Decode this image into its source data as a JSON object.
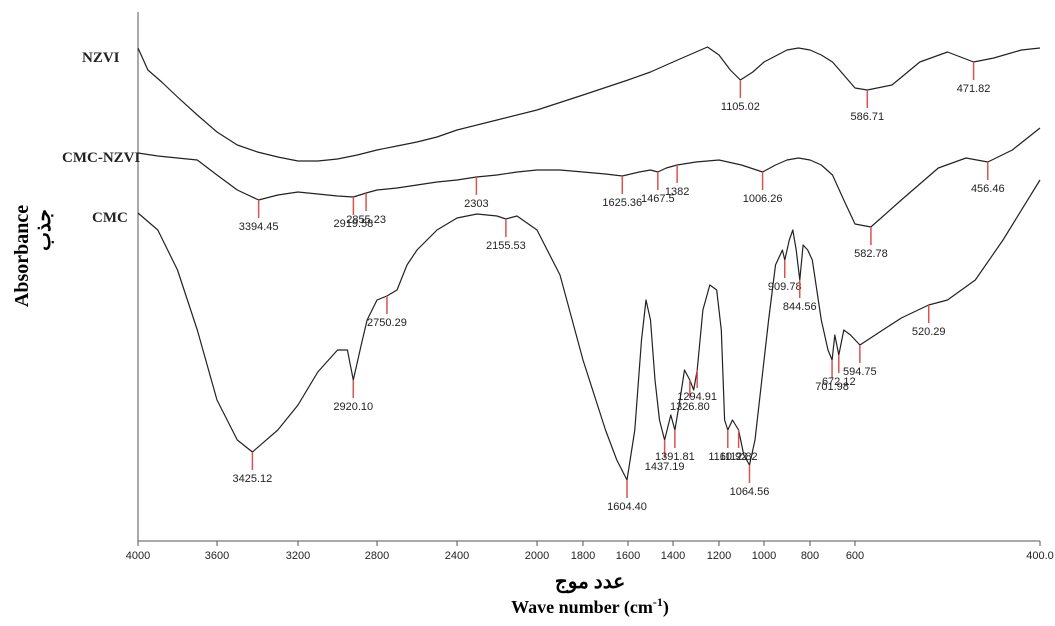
{
  "chart_data": {
    "type": "line",
    "title": "",
    "xlabel_arabic": "عدد موج",
    "xlabel": "Wave number (cm",
    "xlabel_unit_sup": "-1",
    "xlabel_close": ")",
    "ylabel": "Absorbance",
    "ylabel_arabic": "جذب",
    "xlim": [
      4000,
      400
    ],
    "x_reversed": true,
    "x_ticks": [
      {
        "value": 4000,
        "label": "4000"
      },
      {
        "value": 3600,
        "label": "3600"
      },
      {
        "value": 3200,
        "label": "3200"
      },
      {
        "value": 2800,
        "label": "2800"
      },
      {
        "value": 2400,
        "label": "2400"
      },
      {
        "value": 2000,
        "label": "2000"
      },
      {
        "value": 1800,
        "label": "1800"
      },
      {
        "value": 1600,
        "label": "1600"
      },
      {
        "value": 1400,
        "label": "1400"
      },
      {
        "value": 1200,
        "label": "1200"
      },
      {
        "value": 1000,
        "label": "1000"
      },
      {
        "value": 800,
        "label": "800"
      },
      {
        "value": 600,
        "label": "600"
      },
      {
        "value": 400,
        "label": "400.0"
      }
    ],
    "line_color": "#222222",
    "marker_color": "#d9534f",
    "series": [
      {
        "name": "NZVI",
        "points": [
          [
            4000,
            48
          ],
          [
            3950,
            70
          ],
          [
            3880,
            82
          ],
          [
            3800,
            97
          ],
          [
            3700,
            115
          ],
          [
            3600,
            132
          ],
          [
            3500,
            145
          ],
          [
            3400,
            152
          ],
          [
            3300,
            157
          ],
          [
            3200,
            161
          ],
          [
            3100,
            161
          ],
          [
            3000,
            159
          ],
          [
            2900,
            155
          ],
          [
            2800,
            150
          ],
          [
            2700,
            146
          ],
          [
            2600,
            142
          ],
          [
            2500,
            137
          ],
          [
            2400,
            130
          ],
          [
            2200,
            120
          ],
          [
            2000,
            110
          ],
          [
            1800,
            95
          ],
          [
            1600,
            80
          ],
          [
            1500,
            72
          ],
          [
            1400,
            62
          ],
          [
            1300,
            52
          ],
          [
            1250,
            47
          ],
          [
            1200,
            55
          ],
          [
            1150,
            70
          ],
          [
            1105,
            80
          ],
          [
            1050,
            72
          ],
          [
            1000,
            62
          ],
          [
            950,
            56
          ],
          [
            900,
            50
          ],
          [
            850,
            48
          ],
          [
            800,
            50
          ],
          [
            750,
            55
          ],
          [
            700,
            62
          ],
          [
            650,
            75
          ],
          [
            600,
            88
          ],
          [
            586.71,
            90
          ],
          [
            560,
            85
          ],
          [
            530,
            62
          ],
          [
            500,
            52
          ],
          [
            471.82,
            62
          ],
          [
            450,
            58
          ],
          [
            420,
            50
          ],
          [
            400,
            48
          ]
        ],
        "peaks": [
          {
            "x": 1105.02,
            "label": "1105.02"
          },
          {
            "x": 586.71,
            "label": "586.71"
          },
          {
            "x": 471.82,
            "label": "471.82"
          }
        ]
      },
      {
        "name": "CMC-NZVI",
        "points": [
          [
            4000,
            153
          ],
          [
            3900,
            156
          ],
          [
            3800,
            158
          ],
          [
            3700,
            160
          ],
          [
            3600,
            175
          ],
          [
            3500,
            190
          ],
          [
            3394.45,
            200
          ],
          [
            3300,
            195
          ],
          [
            3200,
            192
          ],
          [
            3100,
            194
          ],
          [
            3000,
            196
          ],
          [
            2919.58,
            197
          ],
          [
            2855.23,
            193
          ],
          [
            2800,
            190
          ],
          [
            2700,
            188
          ],
          [
            2600,
            185
          ],
          [
            2500,
            182
          ],
          [
            2400,
            180
          ],
          [
            2303,
            177
          ],
          [
            2200,
            175
          ],
          [
            2100,
            172
          ],
          [
            2000,
            170
          ],
          [
            1900,
            170
          ],
          [
            1800,
            172
          ],
          [
            1700,
            174
          ],
          [
            1625.36,
            176
          ],
          [
            1550,
            172
          ],
          [
            1500,
            170
          ],
          [
            1467.5,
            172
          ],
          [
            1430,
            168
          ],
          [
            1382,
            165
          ],
          [
            1300,
            162
          ],
          [
            1200,
            160
          ],
          [
            1100,
            165
          ],
          [
            1006.26,
            172
          ],
          [
            950,
            165
          ],
          [
            900,
            160
          ],
          [
            850,
            158
          ],
          [
            800,
            160
          ],
          [
            750,
            165
          ],
          [
            700,
            175
          ],
          [
            650,
            200
          ],
          [
            600,
            224
          ],
          [
            582.78,
            227
          ],
          [
            550,
            200
          ],
          [
            510,
            168
          ],
          [
            480,
            158
          ],
          [
            456.46,
            162
          ],
          [
            430,
            150
          ],
          [
            400,
            128
          ]
        ],
        "peaks": [
          {
            "x": 3394.45,
            "label": "3394.45"
          },
          {
            "x": 2919.58,
            "label": "2919.58"
          },
          {
            "x": 2855.23,
            "label": "2855.23"
          },
          {
            "x": 2303,
            "label": "2303"
          },
          {
            "x": 1625.36,
            "label": "1625.36"
          },
          {
            "x": 1467.5,
            "label": "1467.5"
          },
          {
            "x": 1382,
            "label": "1382"
          },
          {
            "x": 1006.26,
            "label": "1006.26"
          },
          {
            "x": 582.78,
            "label": "582.78"
          },
          {
            "x": 456.46,
            "label": "456.46"
          }
        ]
      },
      {
        "name": "CMC",
        "points": [
          [
            4000,
            213
          ],
          [
            3900,
            230
          ],
          [
            3800,
            270
          ],
          [
            3700,
            330
          ],
          [
            3600,
            400
          ],
          [
            3500,
            440
          ],
          [
            3425.12,
            452
          ],
          [
            3300,
            430
          ],
          [
            3200,
            405
          ],
          [
            3100,
            372
          ],
          [
            3000,
            350
          ],
          [
            2950,
            350
          ],
          [
            2920.1,
            380
          ],
          [
            2880,
            345
          ],
          [
            2850,
            320
          ],
          [
            2800,
            300
          ],
          [
            2750.29,
            296
          ],
          [
            2700,
            290
          ],
          [
            2650,
            265
          ],
          [
            2600,
            250
          ],
          [
            2500,
            230
          ],
          [
            2400,
            218
          ],
          [
            2300,
            214
          ],
          [
            2200,
            216
          ],
          [
            2155.53,
            219
          ],
          [
            2100,
            216
          ],
          [
            2000,
            230
          ],
          [
            1900,
            275
          ],
          [
            1800,
            360
          ],
          [
            1700,
            430
          ],
          [
            1650,
            460
          ],
          [
            1604.4,
            480
          ],
          [
            1570,
            430
          ],
          [
            1540,
            340
          ],
          [
            1520,
            300
          ],
          [
            1500,
            320
          ],
          [
            1480,
            380
          ],
          [
            1460,
            420
          ],
          [
            1437.19,
            440
          ],
          [
            1410,
            415
          ],
          [
            1391.81,
            430
          ],
          [
            1370,
            400
          ],
          [
            1350,
            370
          ],
          [
            1326.8,
            380
          ],
          [
            1310,
            390
          ],
          [
            1294.91,
            370
          ],
          [
            1270,
            310
          ],
          [
            1240,
            285
          ],
          [
            1210,
            290
          ],
          [
            1190,
            330
          ],
          [
            1175,
            420
          ],
          [
            1160.92,
            430
          ],
          [
            1140,
            420
          ],
          [
            1112.82,
            430
          ],
          [
            1090,
            455
          ],
          [
            1064.56,
            465
          ],
          [
            1040,
            440
          ],
          [
            1010,
            380
          ],
          [
            980,
            320
          ],
          [
            950,
            265
          ],
          [
            920,
            250
          ],
          [
            909.78,
            260
          ],
          [
            890,
            240
          ],
          [
            875,
            230
          ],
          [
            860,
            250
          ],
          [
            844.56,
            280
          ],
          [
            830,
            245
          ],
          [
            810,
            250
          ],
          [
            790,
            260
          ],
          [
            770,
            290
          ],
          [
            750,
            320
          ],
          [
            720,
            350
          ],
          [
            701.98,
            360
          ],
          [
            690,
            335
          ],
          [
            672.12,
            355
          ],
          [
            650,
            330
          ],
          [
            620,
            335
          ],
          [
            594.75,
            345
          ],
          [
            570,
            330
          ],
          [
            550,
            318
          ],
          [
            520.29,
            305
          ],
          [
            500,
            300
          ],
          [
            470,
            280
          ],
          [
            440,
            240
          ],
          [
            400,
            180
          ]
        ],
        "peaks": [
          {
            "x": 3425.12,
            "label": "3425.12"
          },
          {
            "x": 2920.1,
            "label": "2920.10"
          },
          {
            "x": 2750.29,
            "label": "2750.29"
          },
          {
            "x": 2155.53,
            "label": "2155.53"
          },
          {
            "x": 1604.4,
            "label": "1604.40"
          },
          {
            "x": 1437.19,
            "label": "1437.19"
          },
          {
            "x": 1391.81,
            "label": "1391.81"
          },
          {
            "x": 1326.8,
            "label": "1326.80"
          },
          {
            "x": 1294.91,
            "label": "1294.91"
          },
          {
            "x": 1160.92,
            "label": "1160.92"
          },
          {
            "x": 1112.82,
            "label": "1112.82"
          },
          {
            "x": 1064.56,
            "label": "1064.56"
          },
          {
            "x": 909.78,
            "label": "909.78"
          },
          {
            "x": 844.56,
            "label": "844.56"
          },
          {
            "x": 701.98,
            "label": "701.98"
          },
          {
            "x": 672.12,
            "label": "672.12"
          },
          {
            "x": 594.75,
            "label": "594.75"
          },
          {
            "x": 520.29,
            "label": "520.29"
          }
        ]
      }
    ]
  }
}
